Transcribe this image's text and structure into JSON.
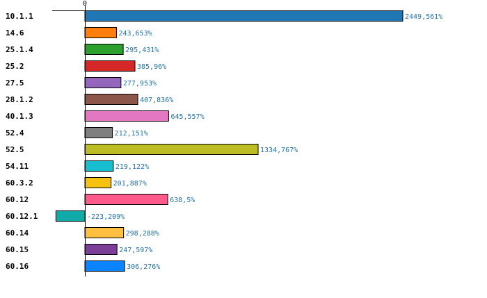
{
  "chart_data": {
    "type": "bar",
    "orientation": "horizontal",
    "zero_tick_label": "0",
    "grid": false,
    "categories": [
      "10.1.1",
      "14.6",
      "25.1.4",
      "25.2",
      "27.5",
      "28.1.2",
      "40.1.3",
      "52.4",
      "52.5",
      "54.11",
      "60.3.2",
      "60.12",
      "60.12.1",
      "60.14",
      "60.15",
      "60.16"
    ],
    "values": [
      2449.561,
      243.653,
      295.431,
      385.96,
      277.953,
      407.836,
      645.557,
      212.151,
      1334.767,
      219.122,
      201.887,
      638.5,
      -223.209,
      298.288,
      247.597,
      306.276
    ],
    "value_labels": [
      "2449,561%",
      "243,653%",
      "295,431%",
      "385,96%",
      "277,953%",
      "407,836%",
      "645,557%",
      "212,151%",
      "1334,767%",
      "219,122%",
      "201,887%",
      "638,5%",
      "-223,209%",
      "298,288%",
      "247,597%",
      "306,276%"
    ],
    "colors": [
      "#1f77b4",
      "#ff7f0e",
      "#2ca02c",
      "#d62728",
      "#9467bd",
      "#8c564b",
      "#e377c2",
      "#7f7f7f",
      "#bcbd22",
      "#17becf",
      "#f5c211",
      "#ff5a8c",
      "#10aaa8",
      "#ffbf40",
      "#7b3f98",
      "#0a84ff"
    ],
    "value_label_color": "#1f6fa8"
  }
}
